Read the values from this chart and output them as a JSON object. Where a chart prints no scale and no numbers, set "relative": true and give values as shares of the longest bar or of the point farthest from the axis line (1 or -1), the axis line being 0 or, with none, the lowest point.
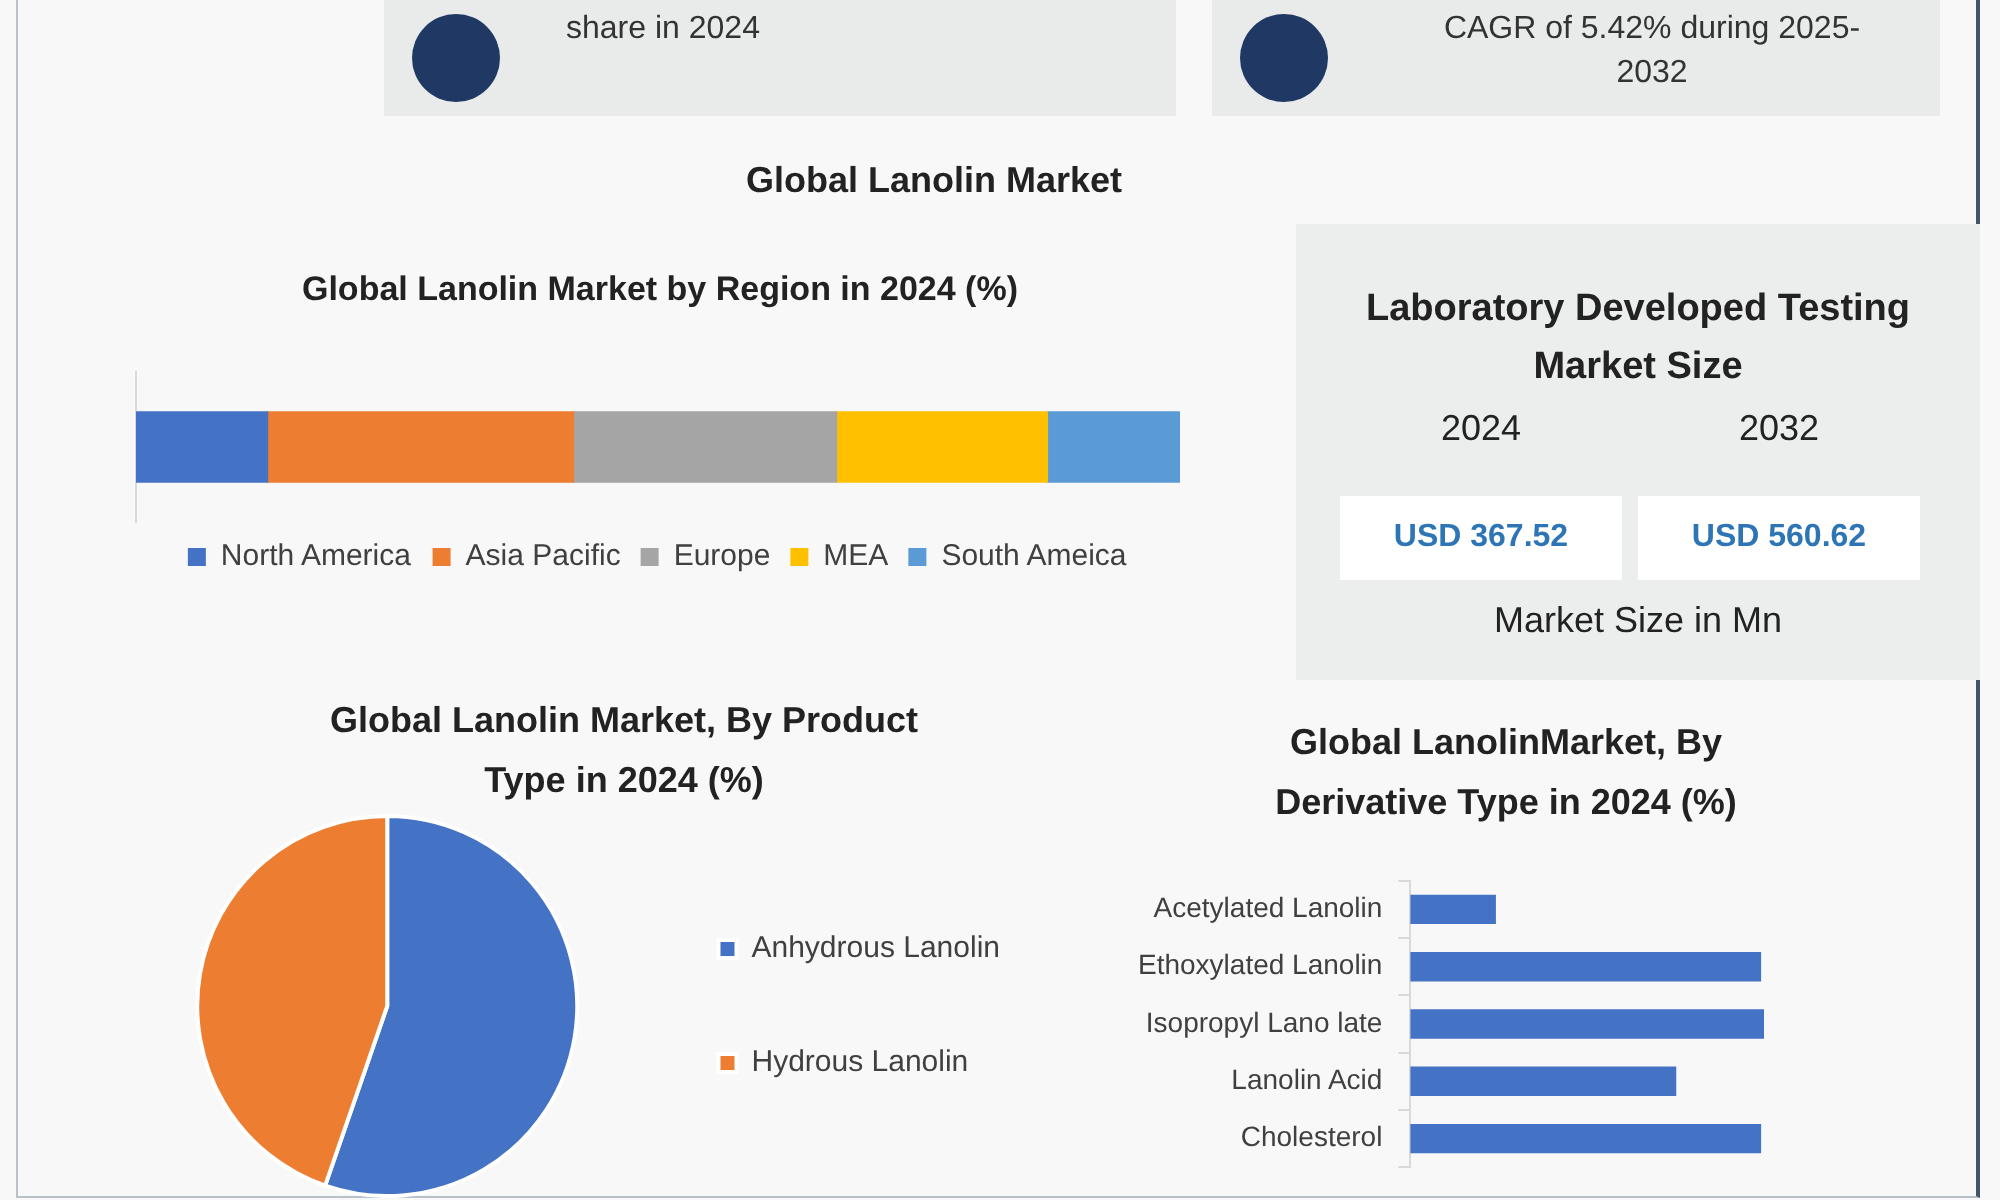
{
  "chart_data": [
    {
      "type": "other",
      "title": "Global Lanolin Market",
      "annotations": [
        "share in 2024",
        "CAGR of 5.42% during 2025-2032"
      ]
    },
    {
      "type": "bar",
      "title": "Global Lanolin Market by Region in 2024 (%)",
      "orientation": "horizontal",
      "stacked": true,
      "relative": true,
      "categories": [
        null
      ],
      "series": [
        {
          "name": "North America",
          "color": "#4472c4",
          "values": [
            0.126
          ]
        },
        {
          "name": "Asia Pacific",
          "color": "#ed7d31",
          "values": [
            0.293
          ]
        },
        {
          "name": "Europe",
          "color": "#a5a5a5",
          "values": [
            0.252
          ]
        },
        {
          "name": "MEA",
          "color": "#ffc000",
          "values": [
            0.202
          ]
        },
        {
          "name": "South Ameica",
          "color": "#5b9bd5",
          "values": [
            0.127
          ]
        }
      ],
      "legend": "bottom"
    },
    {
      "type": "other",
      "title": "Laboratory Developed Testing Market Size",
      "categories": [
        "2024",
        "2032"
      ],
      "annotations": [
        "USD 367.52",
        "USD 560.62"
      ],
      "xlabel": "Market Size in Mn"
    },
    {
      "type": "pie",
      "title": "Global Lanolin Market, By Product Type in 2024 (%)",
      "categories": [
        "Anhydrous Lanolin",
        "Hydrous Lanolin"
      ],
      "values": [
        55.3,
        44.7
      ],
      "colors": [
        "#4472c4",
        "#ed7d31"
      ],
      "legend": "right"
    },
    {
      "type": "bar",
      "title": "Global LanolinMarket, By Derivative Type in 2024 (%)",
      "orientation": "horizontal",
      "relative": true,
      "categories": [
        "Acetylated Lanolin",
        "Ethoxylated Lanolin",
        "Isopropyl Lano late",
        "Lanolin Acid",
        "Cholesterol"
      ],
      "values": [
        0.24,
        0.99,
        1,
        0.75,
        0.99
      ],
      "color": "#4472c4"
    }
  ]
}
